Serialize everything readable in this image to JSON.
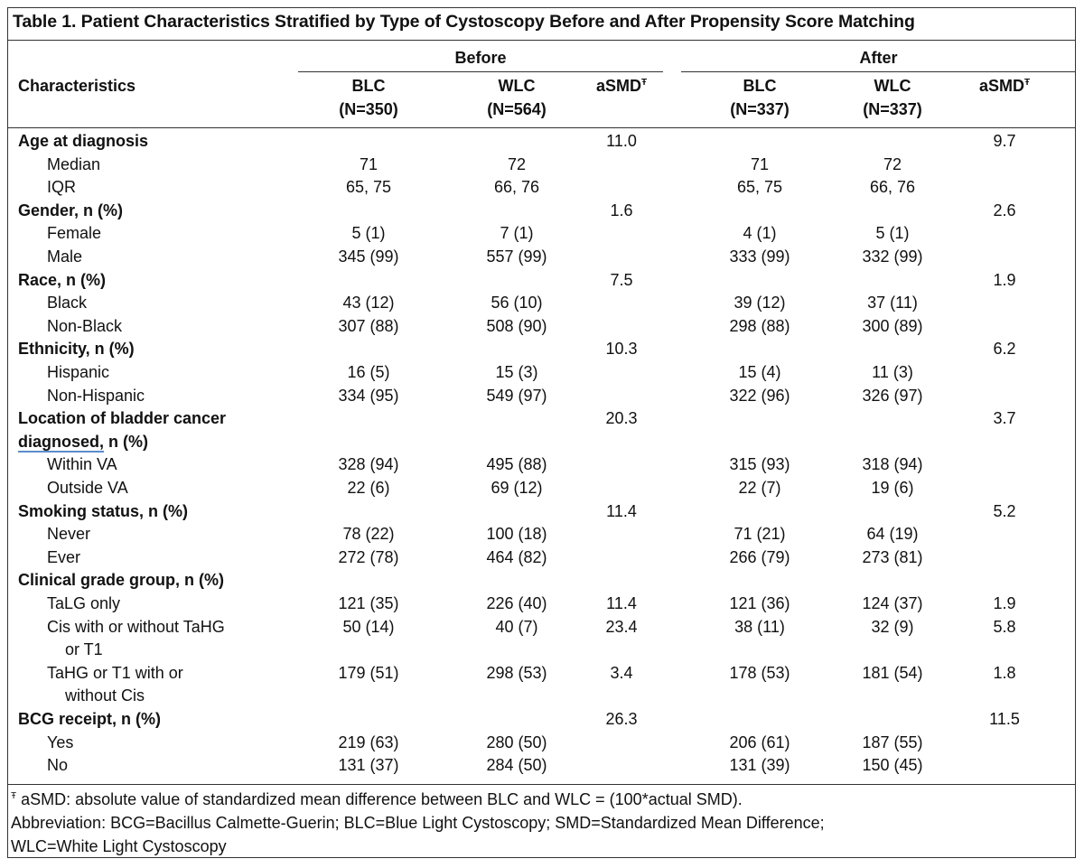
{
  "title": "Table 1. Patient Characteristics Stratified by Type of Cystoscopy Before and After Propensity Score Matching",
  "groups": {
    "before": "Before",
    "after": "After"
  },
  "headers": {
    "characteristics": "Characteristics",
    "blc_before": "BLC",
    "blc_before_n": "(N=350)",
    "wlc_before": "WLC",
    "wlc_before_n": "(N=564)",
    "asmd_before": "aSMD",
    "blc_after": "BLC",
    "blc_after_n": "(N=337)",
    "wlc_after": "WLC",
    "wlc_after_n": "(N=337)",
    "asmd_after": "aSMD",
    "asmd_mark": "Ŧ"
  },
  "rows": [
    {
      "label": [
        "Age at diagnosis"
      ],
      "bold": true,
      "sb": "11.0",
      "sa": "9.7"
    },
    {
      "label": [
        "Median"
      ],
      "bb": "71",
      "wb": "72",
      "ba": "71",
      "wa": "72"
    },
    {
      "label": [
        "IQR"
      ],
      "bb": "65, 75",
      "wb": "66, 76",
      "ba": "65, 75",
      "wa": "66, 76"
    },
    {
      "label": [
        "Gender, n (%)"
      ],
      "bold": true,
      "sb": "1.6",
      "sa": "2.6"
    },
    {
      "label": [
        "Female"
      ],
      "bb": "5 (1)",
      "wb": "7 (1)",
      "ba": "4 (1)",
      "wa": "5 (1)"
    },
    {
      "label": [
        "Male"
      ],
      "bb": "345 (99)",
      "wb": "557 (99)",
      "ba": "333 (99)",
      "wa": "332 (99)"
    },
    {
      "label": [
        "Race, n (%)"
      ],
      "bold": true,
      "sb": "7.5",
      "sa": "1.9"
    },
    {
      "label": [
        "Black"
      ],
      "bb": "43 (12)",
      "wb": "56 (10)",
      "ba": "39 (12)",
      "wa": "37 (11)"
    },
    {
      "label": [
        "Non-Black"
      ],
      "bb": "307 (88)",
      "wb": "508 (90)",
      "ba": "298 (88)",
      "wa": "300 (89)"
    },
    {
      "label": [
        "Ethnicity, n (%)"
      ],
      "bold": true,
      "sb": "10.3",
      "sa": "6.2"
    },
    {
      "label": [
        "Hispanic"
      ],
      "bb": "16 (5)",
      "wb": "15 (3)",
      "ba": "15 (4)",
      "wa": "11 (3)"
    },
    {
      "label": [
        "Non-Hispanic"
      ],
      "bb": "334 (95)",
      "wb": "549 (97)",
      "ba": "322 (96)",
      "wa": "326 (97)"
    },
    {
      "label": [
        "Location of bladder cancer",
        "diagnosed, n (%)"
      ],
      "bold": true,
      "sb": "20.3",
      "sa": "3.7",
      "underline": "diagnosed,"
    },
    {
      "label": [
        "Within VA"
      ],
      "bb": "328 (94)",
      "wb": "495 (88)",
      "ba": "315 (93)",
      "wa": "318 (94)"
    },
    {
      "label": [
        "Outside VA"
      ],
      "bb": "22 (6)",
      "wb": "69 (12)",
      "ba": "22 (7)",
      "wa": "19 (6)"
    },
    {
      "label": [
        "Smoking status, n (%)"
      ],
      "bold": true,
      "sb": "11.4",
      "sa": "5.2"
    },
    {
      "label": [
        "Never"
      ],
      "bb": "78 (22)",
      "wb": "100 (18)",
      "ba": "71 (21)",
      "wa": "64 (19)"
    },
    {
      "label": [
        "Ever"
      ],
      "bb": "272 (78)",
      "wb": "464 (82)",
      "ba": "266 (79)",
      "wa": "273 (81)"
    },
    {
      "label": [
        "Clinical grade group, n (%)"
      ],
      "bold": true
    },
    {
      "label": [
        "TaLG only"
      ],
      "bb": "121 (35)",
      "wb": "226 (40)",
      "sb": "11.4",
      "ba": "121 (36)",
      "wa": "124 (37)",
      "sa": "1.9"
    },
    {
      "label": [
        "Cis with or without TaHG",
        "or T1"
      ],
      "bb": "50 (14)",
      "wb": "40 (7)",
      "sb": "23.4",
      "ba": "38 (11)",
      "wa": "32 (9)",
      "sa": "5.8"
    },
    {
      "label": [
        "TaHG or T1 with or",
        "without Cis"
      ],
      "bb": "179 (51)",
      "wb": "298 (53)",
      "sb": "3.4",
      "ba": "178 (53)",
      "wa": "181 (54)",
      "sa": "1.8"
    },
    {
      "label": [
        "BCG receipt, n (%)"
      ],
      "bold": true,
      "sb": "26.3",
      "sa": "11.5"
    },
    {
      "label": [
        "Yes"
      ],
      "bb": "219 (63)",
      "wb": "280 (50)",
      "ba": "206 (61)",
      "wa": "187 (55)"
    },
    {
      "label": [
        "No"
      ],
      "bb": "131 (37)",
      "wb": "284 (50)",
      "ba": "131 (39)",
      "wa": "150 (45)"
    }
  ],
  "footnote": {
    "mark": "Ŧ",
    "line1": " aSMD: absolute value of standardized mean difference between BLC and WLC = (100*actual SMD).",
    "line2": "Abbreviation: BCG=Bacillus Calmette-Guerin; BLC=Blue Light Cystoscopy; SMD=Standardized Mean Difference;",
    "line3": "WLC=White Light Cystoscopy"
  }
}
